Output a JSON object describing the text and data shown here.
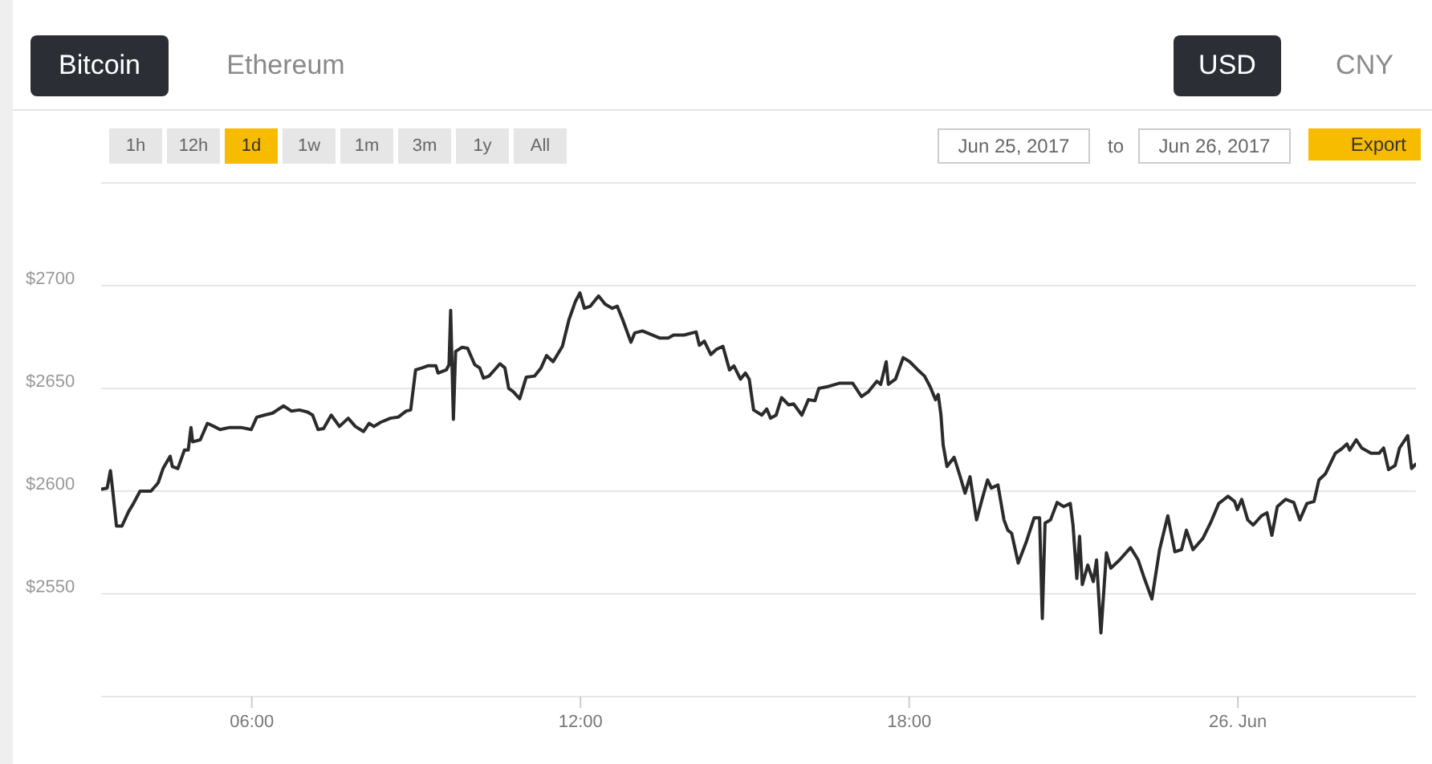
{
  "chart_data": {
    "type": "line",
    "annotations": [
      "Bitcoin",
      "Ethereum",
      "USD",
      "CNY",
      "1h",
      "12h",
      "1d",
      "1w",
      "1m",
      "3m",
      "1y",
      "All",
      "Jun 25, 2017",
      "to",
      "Jun 26, 2017",
      "Export"
    ],
    "x": [
      3.26,
      3.36,
      3.42,
      3.45,
      3.53,
      3.63,
      3.75,
      3.84,
      3.96,
      4.16,
      4.29,
      4.38,
      4.51,
      4.55,
      4.65,
      4.77,
      4.84,
      4.89,
      4.92,
      5.06,
      5.19,
      5.31,
      5.42,
      5.6,
      5.8,
      5.99,
      6.09,
      6.23,
      6.38,
      6.58,
      6.72,
      6.87,
      7.02,
      7.11,
      7.21,
      7.31,
      7.45,
      7.6,
      7.76,
      7.89,
      8.04,
      8.14,
      8.23,
      8.35,
      8.53,
      8.67,
      8.82,
      8.9,
      8.99,
      9.11,
      9.21,
      9.36,
      9.4,
      9.55,
      9.6,
      9.63,
      9.68,
      9.72,
      9.84,
      9.94,
      10.07,
      10.16,
      10.23,
      10.33,
      10.43,
      10.53,
      10.62,
      10.69,
      10.77,
      10.89,
      11.01,
      11.16,
      11.28,
      11.38,
      11.5,
      11.67,
      11.79,
      11.91,
      11.99,
      12.07,
      12.18,
      12.33,
      12.45,
      12.58,
      12.67,
      12.77,
      12.92,
      12.99,
      13.13,
      13.31,
      13.45,
      13.6,
      13.7,
      13.89,
      14.11,
      14.17,
      14.26,
      14.38,
      14.48,
      14.6,
      14.72,
      14.8,
      14.92,
      15.01,
      15.08,
      15.16,
      15.31,
      15.4,
      15.47,
      15.57,
      15.67,
      15.8,
      15.89,
      16.04,
      16.16,
      16.28,
      16.35,
      16.53,
      16.72,
      16.97,
      17.13,
      17.26,
      17.41,
      17.48,
      17.58,
      17.62,
      17.75,
      17.89,
      18.01,
      18.14,
      18.28,
      18.38,
      18.48,
      18.53,
      18.58,
      18.62,
      18.69,
      18.82,
      18.92,
      19.02,
      19.11,
      19.23,
      19.33,
      19.43,
      19.5,
      19.62,
      19.73,
      19.8,
      19.87,
      19.99,
      20.14,
      20.28,
      20.38,
      20.43,
      20.48,
      20.58,
      20.7,
      20.82,
      20.94,
      20.99,
      21.06,
      21.11,
      21.16,
      21.26,
      21.36,
      21.42,
      21.5,
      21.6,
      21.68,
      21.84,
      22.04,
      22.18,
      22.28,
      22.43,
      22.57,
      22.72,
      22.85,
      22.97,
      23.06,
      23.18,
      23.36,
      23.5,
      23.65,
      23.82,
      23.94,
      23.99,
      24.07,
      24.18,
      24.28,
      24.43,
      24.53,
      24.62,
      24.72,
      24.87,
      25.02,
      25.13,
      25.26,
      25.39,
      25.48,
      25.6,
      25.78,
      25.89,
      25.99,
      26.04,
      26.16,
      26.26,
      26.43,
      26.58,
      26.66,
      26.75,
      26.87,
      26.95,
      27.1,
      27.17,
      27.24
    ],
    "series": [
      {
        "color": "#2b2b2b",
        "values": [
          2601,
          2601.5,
          2610,
          2603,
          2583,
          2583,
          2590,
          2594,
          2600,
          2600,
          2604,
          2611,
          2617,
          2612,
          2611,
          2620,
          2620,
          2631,
          2624,
          2625,
          2633,
          2631.5,
          2630,
          2631,
          2631,
          2630,
          2636,
          2637,
          2638,
          2641.5,
          2639,
          2639.5,
          2638.5,
          2637,
          2630,
          2630.5,
          2637,
          2631.5,
          2635.5,
          2631.5,
          2629,
          2633,
          2631.5,
          2633.5,
          2635.5,
          2636,
          2639,
          2639.5,
          2659,
          2660,
          2661,
          2661,
          2657.5,
          2659,
          2661.5,
          2688,
          2635,
          2668,
          2670,
          2669.5,
          2661.5,
          2660,
          2655,
          2656,
          2659,
          2662,
          2660,
          2650,
          2648.5,
          2645,
          2655.5,
          2656,
          2660,
          2666,
          2663,
          2670.5,
          2683.5,
          2692.5,
          2696.5,
          2689,
          2690,
          2695,
          2691,
          2689,
          2690,
          2683.5,
          2672.5,
          2677,
          2678,
          2676,
          2674.5,
          2674.5,
          2676,
          2676,
          2677.5,
          2671,
          2673,
          2666.5,
          2669,
          2670.5,
          2659,
          2661,
          2654.5,
          2657.5,
          2654.5,
          2639.5,
          2637,
          2640,
          2635.5,
          2637,
          2645.5,
          2642,
          2642.5,
          2637,
          2644.5,
          2644,
          2650,
          2651,
          2652.5,
          2652.5,
          2646,
          2648.5,
          2653.5,
          2652,
          2663,
          2652,
          2654.5,
          2665,
          2663,
          2659.5,
          2656,
          2651,
          2644.5,
          2647,
          2637,
          2622.5,
          2612,
          2616.5,
          2608,
          2599,
          2607,
          2586,
          2596,
          2605.5,
          2601.5,
          2603,
          2586,
          2581,
          2579.5,
          2565,
          2575.5,
          2587,
          2587,
          2538,
          2584.5,
          2586,
          2594.5,
          2592.5,
          2594,
          2583.5,
          2557.5,
          2578,
          2554.5,
          2564,
          2556,
          2566.5,
          2531,
          2570,
          2562.5,
          2566.5,
          2572.5,
          2566.5,
          2558.5,
          2547.5,
          2571.5,
          2588,
          2570.5,
          2571.5,
          2581,
          2571.5,
          2577,
          2584.5,
          2594,
          2597.5,
          2595,
          2591,
          2596,
          2586,
          2583.5,
          2588,
          2589.5,
          2578.5,
          2592.5,
          2596,
          2594.5,
          2586,
          2594,
          2595,
          2605.5,
          2608.5,
          2618.5,
          2620.5,
          2623,
          2620,
          2625,
          2621,
          2618.5,
          2618.5,
          2621,
          2610.5,
          2612.5,
          2621,
          2627,
          2611,
          2613
        ]
      }
    ],
    "xlim": [
      3.25,
      27.25
    ],
    "xticks": [
      {
        "value": 6,
        "label": "06:00"
      },
      {
        "value": 12,
        "label": "12:00"
      },
      {
        "value": 18,
        "label": "18:00"
      },
      {
        "value": 24,
        "label": "26. Jun"
      }
    ],
    "ylim": [
      2500,
      2750
    ],
    "yticks": [
      {
        "value": 2550,
        "label": "$2550"
      },
      {
        "value": 2600,
        "label": "$2600"
      },
      {
        "value": 2650,
        "label": "$2650"
      },
      {
        "value": 2700,
        "label": "$2700"
      },
      {
        "value": 2750,
        "label": null
      }
    ],
    "grid": "y"
  }
}
